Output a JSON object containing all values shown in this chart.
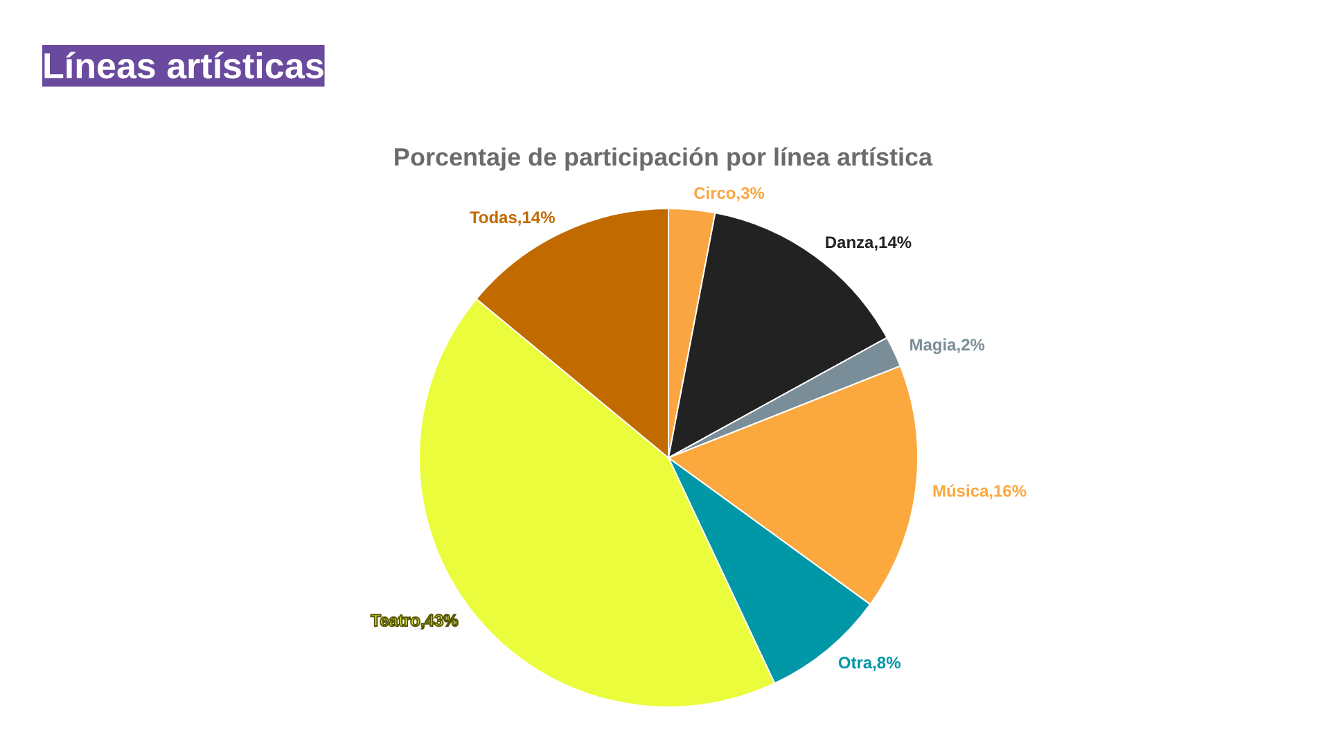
{
  "chart_data": {
    "type": "pie",
    "title": "Porcentaje de participación por línea artística",
    "annotations": [
      "Líneas artísticas"
    ],
    "categories": [
      "Circo",
      "Danza",
      "Magia",
      "Música",
      "Otra",
      "Teatro",
      "Todas"
    ],
    "values": [
      3,
      14,
      2,
      16,
      8,
      43,
      14
    ],
    "colors": [
      "#f9a541",
      "#222222",
      "#7a8e99",
      "#fba83f",
      "#0097a7",
      "#ebfc3d",
      "#c06a00"
    ],
    "value_labels": [
      "3%",
      "14%",
      "2%",
      "16%",
      "8%",
      "43%",
      "14%"
    ],
    "legend": false
  }
}
